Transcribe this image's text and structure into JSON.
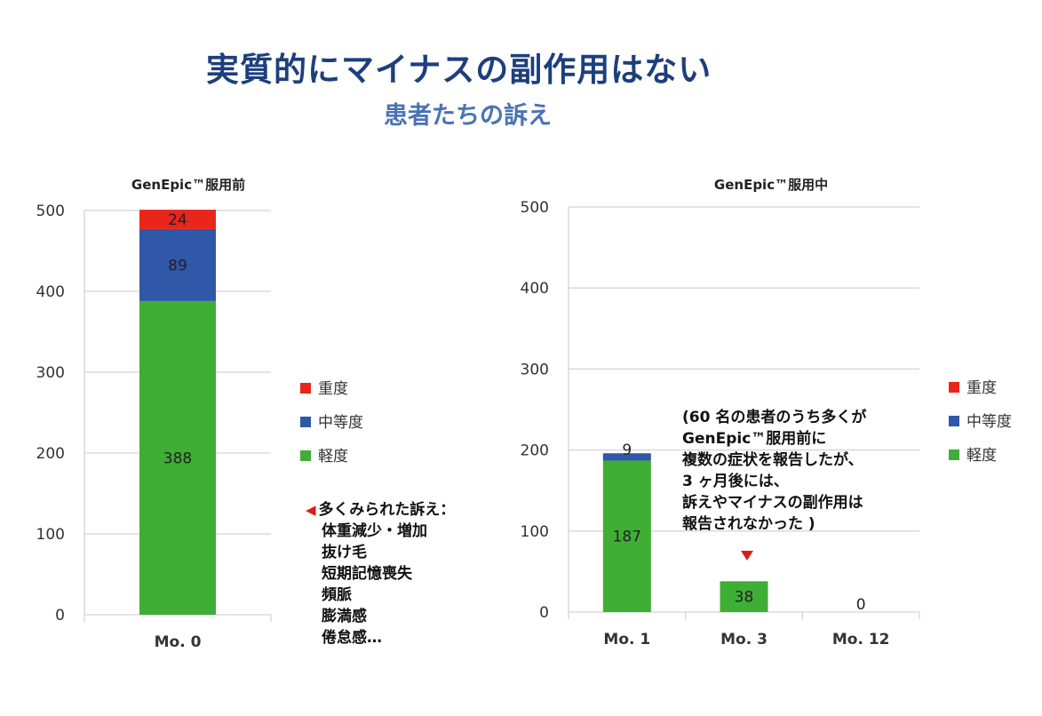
{
  "header": {
    "title": "実質的にマイナスの副作用はない",
    "subtitle": "患者たちの訴え"
  },
  "colors": {
    "severe": "#e8261c",
    "moderate": "#3057a8",
    "mild": "#3fae35",
    "grid": "#d4d4d4"
  },
  "chart_data": [
    {
      "type": "bar",
      "stacked": true,
      "title": "GenEpic™服用前",
      "categories": [
        "Mo. 0"
      ],
      "series": [
        {
          "name": "軽度",
          "values": [
            388
          ]
        },
        {
          "name": "中等度",
          "values": [
            89
          ]
        },
        {
          "name": "重度",
          "values": [
            24
          ]
        }
      ],
      "data_labels": [
        [
          "388",
          "89",
          "24"
        ]
      ],
      "ylim": [
        0,
        500
      ],
      "yticks": [
        "0",
        "100",
        "200",
        "300",
        "400",
        "500"
      ],
      "grid": true,
      "legend": [
        "重度",
        "中等度",
        "軽度"
      ],
      "legend_placement": "right"
    },
    {
      "type": "bar",
      "stacked": true,
      "title": "GenEpic™服用中",
      "categories": [
        "Mo. 1",
        "Mo. 3",
        "Mo. 12"
      ],
      "series": [
        {
          "name": "軽度",
          "values": [
            187,
            38,
            0
          ]
        },
        {
          "name": "中等度",
          "values": [
            9,
            0,
            0
          ]
        },
        {
          "name": "重度",
          "values": [
            0,
            0,
            0
          ]
        }
      ],
      "data_labels": [
        [
          "187",
          "9",
          ""
        ],
        [
          "38",
          "",
          ""
        ],
        [
          "0",
          "",
          ""
        ]
      ],
      "ylim": [
        0,
        500
      ],
      "yticks": [
        "0",
        "100",
        "200",
        "300",
        "400",
        "500"
      ],
      "grid": true,
      "legend": [
        "重度",
        "中等度",
        "軽度"
      ],
      "legend_placement": "right"
    }
  ],
  "notes": {
    "left_heading": "多くみられた訴え：",
    "left_items": [
      "体重減少・増加",
      "抜け毛",
      "短期記憶喪失",
      "頻脈",
      "膨満感",
      "倦怠感…"
    ],
    "right_lines": [
      "(60 名の患者のうち多くが",
      "GenEpic™服用前に",
      "複数の症状を報告したが、",
      "3 ヶ月後には、",
      "訴えやマイナスの副作用は",
      "報告されなかった )"
    ]
  }
}
